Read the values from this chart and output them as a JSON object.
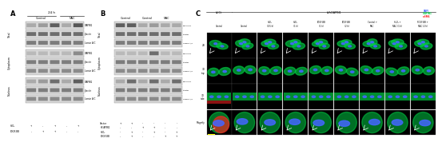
{
  "panel_A_label": "A",
  "panel_B_label": "B",
  "panel_C_label": "C",
  "panel_A_title": "24 h",
  "panel_A_groups": [
    "Control",
    "NAC"
  ],
  "panel_A_rows": [
    "CIAPIN1",
    "β-actin",
    "Lamin A/C",
    "CIAPIN1",
    "β-actin",
    "Lamin A/C",
    "CIAPIN1",
    "β-actin",
    "Lamin A/C"
  ],
  "panel_A_sections": [
    "Total",
    "Cytoplasm",
    "Nucleus"
  ],
  "panel_A_xlabels": [
    "H₂O₂",
    "PDGF-BB"
  ],
  "panel_B_rows": [
    "hCIAPIN1",
    "β-actin",
    "Lamin A/C",
    "hCIAPIN1",
    "β-actin",
    "Lamin A/C",
    "hCIAPIN1",
    "β-actin",
    "Lamin A/C"
  ],
  "panel_B_sections": [
    "Total",
    "Cytoplasm",
    "Nucleus"
  ],
  "panel_B_xrow_labels": [
    "Vector",
    "hCIAPIN1",
    "H₂O₂",
    "PDGF-BB"
  ],
  "panel_C_top_labels": [
    "LV-Ct",
    "LVhCIAPIN1"
  ],
  "panel_C_legend": [
    "DAPI",
    "CIAPIN1",
    "α-SMA"
  ],
  "panel_C_col_labels": [
    "Control",
    "Control",
    "H₂O₂\n(0.5 h)",
    "H₂O₂\n(1 h)",
    "PDGF-BB\n(1 h)",
    "PDGF-BB\n(2 h)",
    "Control +\nNAC",
    "H₂O₂ +\nNAC (1 h)",
    "PDGF-BB +\nNAC (2 h)"
  ],
  "panel_C_row_labels": [
    "2D",
    "3D\ntop",
    "3D\nside",
    "Magnify"
  ],
  "bg_color": "#ffffff",
  "blot_bg": "#d8d8d8",
  "blot_dark": "#404040",
  "cell_bg": "#000000",
  "cell_green": "#00cc44",
  "cell_blue": "#4466ff",
  "cell_red": "#ff2222",
  "cell_yellow": "#cccc00",
  "patterns_A": [
    [
      0.3,
      0.4,
      0.8,
      0.3,
      0.85
    ],
    [
      0.7,
      0.7,
      0.7,
      0.7,
      0.7
    ],
    [
      0.6,
      0.6,
      0.6,
      0.6,
      0.6
    ],
    [
      0.2,
      0.2,
      0.2,
      0.2,
      0.5
    ],
    [
      0.6,
      0.6,
      0.6,
      0.6,
      0.6
    ],
    [
      0.5,
      0.5,
      0.5,
      0.5,
      0.5
    ],
    [
      0.3,
      0.4,
      0.7,
      0.3,
      0.8
    ],
    [
      0.6,
      0.6,
      0.6,
      0.6,
      0.6
    ],
    [
      0.5,
      0.5,
      0.5,
      0.5,
      0.5
    ]
  ],
  "patterns_B": [
    [
      0.8,
      0.8,
      0.3,
      0.4,
      0.3,
      0.3
    ],
    [
      0.7,
      0.7,
      0.7,
      0.7,
      0.7,
      0.7
    ],
    [
      0.6,
      0.6,
      0.6,
      0.6,
      0.6,
      0.6
    ],
    [
      0.2,
      0.2,
      0.2,
      0.7,
      0.2,
      0.2
    ],
    [
      0.6,
      0.6,
      0.6,
      0.6,
      0.6,
      0.6
    ],
    [
      0.5,
      0.5,
      0.5,
      0.5,
      0.5,
      0.5
    ],
    [
      0.3,
      0.7,
      0.3,
      0.7,
      0.3,
      0.7
    ],
    [
      0.6,
      0.6,
      0.6,
      0.6,
      0.6,
      0.6
    ],
    [
      0.5,
      0.5,
      0.5,
      0.5,
      0.5,
      0.5
    ]
  ],
  "signs_h2o2_A": [
    "+",
    "-",
    "+",
    "-",
    "+"
  ],
  "signs_pdgf_A": [
    "-",
    "+",
    "+",
    "-",
    "-"
  ],
  "signs_B": [
    [
      "+",
      "+",
      "-",
      "-",
      "-",
      "-"
    ],
    [
      "-",
      "-",
      "+",
      "+",
      "-",
      "-"
    ],
    [
      "-",
      "+",
      "-",
      "+",
      "-",
      "+"
    ],
    [
      "-",
      "+",
      "-",
      "-",
      "+",
      "+"
    ]
  ]
}
